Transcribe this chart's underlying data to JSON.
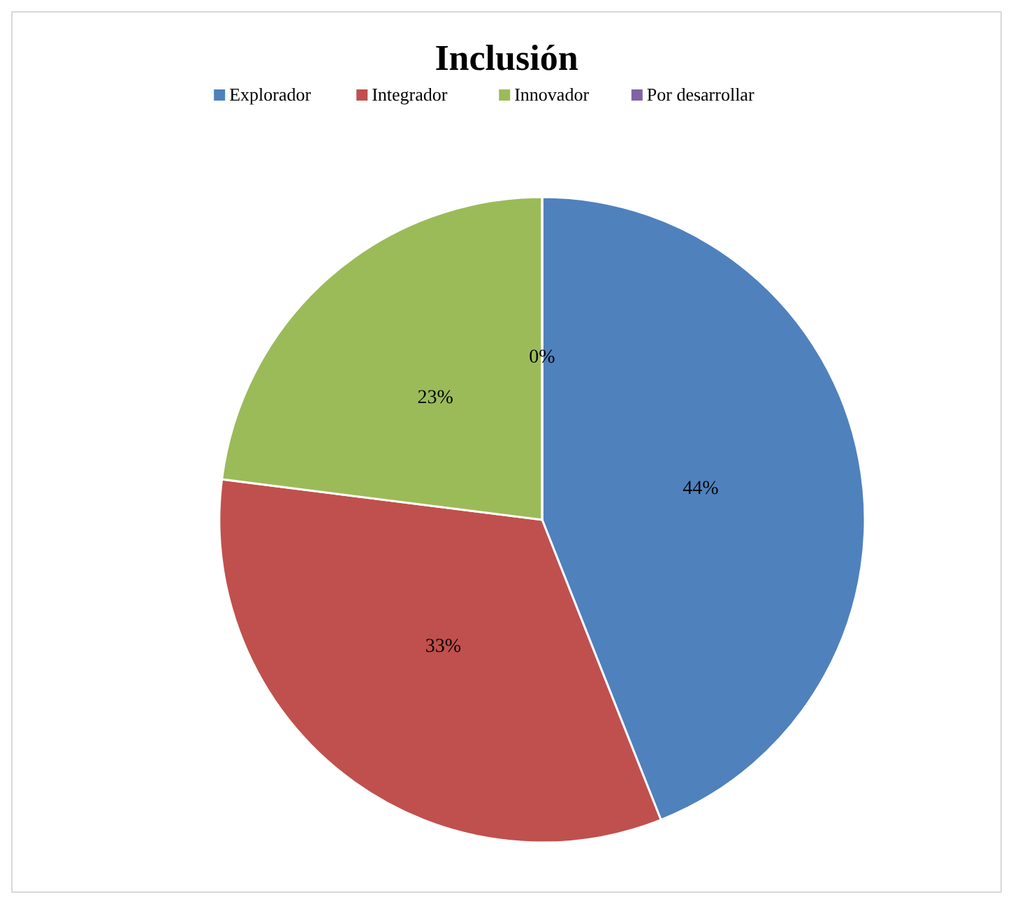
{
  "chart_data": {
    "type": "pie",
    "title": "Inclusión",
    "categories": [
      "Explorador",
      "Integrador",
      "Innovador",
      "Por desarrollar"
    ],
    "values": [
      44,
      33,
      23,
      0
    ],
    "colors": [
      "#4f81bd",
      "#c0504d",
      "#9bbb59",
      "#8064a2"
    ],
    "value_labels": [
      "44%",
      "33%",
      "23%",
      "0%"
    ],
    "legend": "top"
  }
}
